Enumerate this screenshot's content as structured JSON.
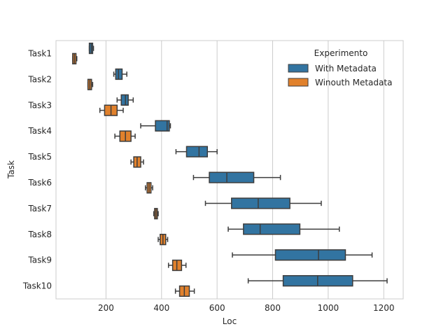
{
  "chart_data": {
    "type": "box",
    "orientation": "horizontal",
    "xlabel": "Loc",
    "ylabel": "Task",
    "xlim": [
      20,
      1270
    ],
    "xticks": [
      200,
      400,
      600,
      800,
      1000,
      1200
    ],
    "grid": "vertical",
    "categories": [
      "Task1",
      "Task2",
      "Task3",
      "Task4",
      "Task5",
      "Task6",
      "Task7",
      "Task8",
      "Task9",
      "Task10"
    ],
    "legend": {
      "title": "Experimento",
      "placement": "top-right",
      "entries": [
        "With Metadata",
        "Winouth Metadata"
      ]
    },
    "colors": {
      "With Metadata": "#3274a1",
      "Winouth Metadata": "#e1812c",
      "edge": "#3d3d3d",
      "grid": "#cccccc",
      "spine": "#cccccc"
    },
    "series": [
      {
        "name": "With Metadata",
        "boxes": [
          {
            "category": "Task1",
            "whislo": 140,
            "q1": 140,
            "med": 147,
            "q3": 152,
            "whishi": 155
          },
          {
            "category": "Task2",
            "whislo": 228,
            "q1": 235,
            "med": 245,
            "q3": 258,
            "whishi": 275
          },
          {
            "category": "Task3",
            "whislo": 240,
            "q1": 255,
            "med": 270,
            "q3": 280,
            "whishi": 298
          },
          {
            "category": "Task4",
            "whislo": 325,
            "q1": 378,
            "med": 420,
            "q3": 428,
            "whishi": 432
          },
          {
            "category": "Task5",
            "whislo": 452,
            "q1": 490,
            "med": 535,
            "q3": 565,
            "whishi": 600
          },
          {
            "category": "Task6",
            "whislo": 515,
            "q1": 572,
            "med": 635,
            "q3": 732,
            "whishi": 828
          },
          {
            "category": "Task7",
            "whislo": 558,
            "q1": 652,
            "med": 748,
            "q3": 862,
            "whishi": 975
          },
          {
            "category": "Task8",
            "whislo": 640,
            "q1": 695,
            "med": 755,
            "q3": 898,
            "whishi": 1040
          },
          {
            "category": "Task9",
            "whislo": 655,
            "q1": 810,
            "med": 965,
            "q3": 1062,
            "whishi": 1158
          },
          {
            "category": "Task10",
            "whislo": 712,
            "q1": 838,
            "med": 962,
            "q3": 1088,
            "whishi": 1212
          }
        ]
      },
      {
        "name": "Winouth Metadata",
        "boxes": [
          {
            "category": "Task1",
            "whislo": 80,
            "q1": 80,
            "med": 86,
            "q3": 92,
            "whishi": 95
          },
          {
            "category": "Task2",
            "whislo": 135,
            "q1": 135,
            "med": 142,
            "q3": 148,
            "whishi": 152
          },
          {
            "category": "Task3",
            "whislo": 178,
            "q1": 195,
            "med": 218,
            "q3": 240,
            "whishi": 262
          },
          {
            "category": "Task4",
            "whislo": 232,
            "q1": 250,
            "med": 270,
            "q3": 290,
            "whishi": 305
          },
          {
            "category": "Task5",
            "whislo": 290,
            "q1": 300,
            "med": 312,
            "q3": 325,
            "whishi": 335
          },
          {
            "category": "Task6",
            "whislo": 342,
            "q1": 348,
            "med": 355,
            "q3": 362,
            "whishi": 368
          },
          {
            "category": "Task7",
            "whislo": 372,
            "q1": 375,
            "med": 380,
            "q3": 385,
            "whishi": 388
          },
          {
            "category": "Task8",
            "whislo": 388,
            "q1": 395,
            "med": 405,
            "q3": 415,
            "whishi": 422
          },
          {
            "category": "Task9",
            "whislo": 425,
            "q1": 440,
            "med": 455,
            "q3": 472,
            "whishi": 488
          },
          {
            "category": "Task10",
            "whislo": 450,
            "q1": 465,
            "med": 482,
            "q3": 500,
            "whishi": 518
          }
        ]
      }
    ]
  }
}
